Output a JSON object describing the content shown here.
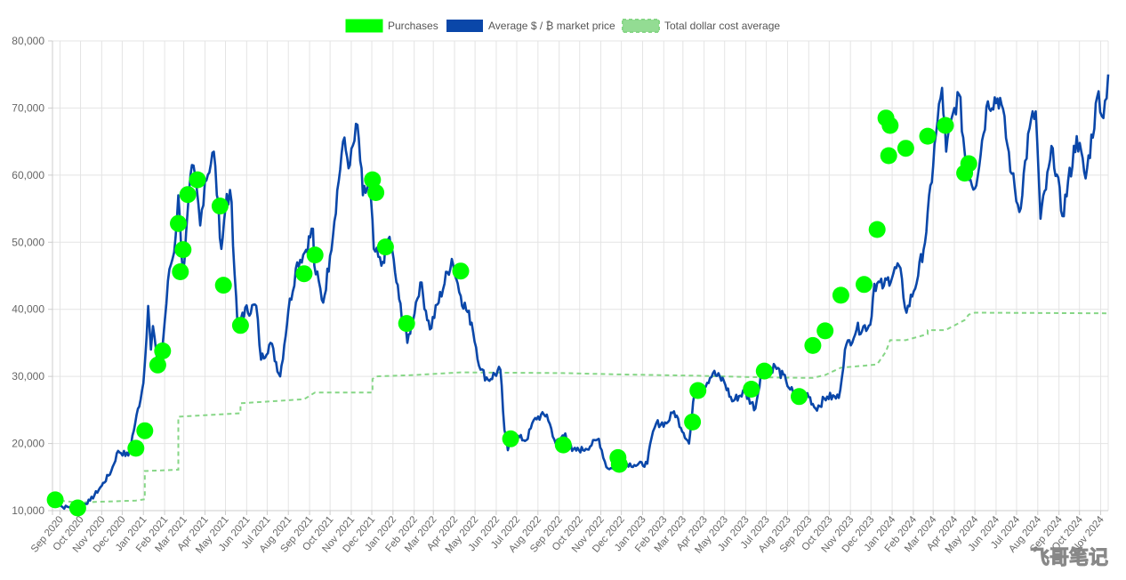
{
  "watermark": "飞哥笔记",
  "chart_data": {
    "type": "line",
    "ylim": [
      10000,
      80000
    ],
    "yticks": [
      10000,
      20000,
      30000,
      40000,
      50000,
      60000,
      70000,
      80000
    ],
    "ytick_labels": [
      "10,000",
      "20,000",
      "30,000",
      "40,000",
      "50,000",
      "60,000",
      "70,000",
      "80,000"
    ],
    "xlim": [
      "2020-08-21",
      "2024-11-12"
    ],
    "xticks": [
      {
        "label": "Sep 2020",
        "date": "2020-09-01"
      },
      {
        "label": "Oct 2020",
        "date": "2020-10-01"
      },
      {
        "label": "Nov 2020",
        "date": "2020-11-01"
      },
      {
        "label": "Dec 2020",
        "date": "2020-12-01"
      },
      {
        "label": "Jan 2021",
        "date": "2021-01-01"
      },
      {
        "label": "Feb 2021",
        "date": "2021-02-01"
      },
      {
        "label": "Mar 2021",
        "date": "2021-03-01"
      },
      {
        "label": "Apr 2021",
        "date": "2021-04-01"
      },
      {
        "label": "May 2021",
        "date": "2021-05-01"
      },
      {
        "label": "Jun 2021",
        "date": "2021-06-01"
      },
      {
        "label": "Jul 2021",
        "date": "2021-07-01"
      },
      {
        "label": "Aug 2021",
        "date": "2021-08-01"
      },
      {
        "label": "Sep 2021",
        "date": "2021-09-01"
      },
      {
        "label": "Oct 2021",
        "date": "2021-10-01"
      },
      {
        "label": "Nov 2021",
        "date": "2021-11-01"
      },
      {
        "label": "Dec 2021",
        "date": "2021-12-01"
      },
      {
        "label": "Jan 2022",
        "date": "2022-01-01"
      },
      {
        "label": "Feb 2022",
        "date": "2022-02-01"
      },
      {
        "label": "Mar 2022",
        "date": "2022-03-01"
      },
      {
        "label": "Apr 2022",
        "date": "2022-04-01"
      },
      {
        "label": "May 2022",
        "date": "2022-05-01"
      },
      {
        "label": "Jun 2022",
        "date": "2022-06-01"
      },
      {
        "label": "Jul 2022",
        "date": "2022-07-01"
      },
      {
        "label": "Aug 2022",
        "date": "2022-08-01"
      },
      {
        "label": "Sep 2022",
        "date": "2022-09-01"
      },
      {
        "label": "Oct 2022",
        "date": "2022-10-01"
      },
      {
        "label": "Nov 2022",
        "date": "2022-11-01"
      },
      {
        "label": "Dec 2022",
        "date": "2022-12-01"
      },
      {
        "label": "Jan 2023",
        "date": "2023-01-01"
      },
      {
        "label": "Feb 2023",
        "date": "2023-02-01"
      },
      {
        "label": "Mar 2023",
        "date": "2023-03-01"
      },
      {
        "label": "Apr 2023",
        "date": "2023-04-01"
      },
      {
        "label": "May 2023",
        "date": "2023-05-01"
      },
      {
        "label": "Jun 2023",
        "date": "2023-06-01"
      },
      {
        "label": "Jul 2023",
        "date": "2023-07-01"
      },
      {
        "label": "Aug 2023",
        "date": "2023-08-01"
      },
      {
        "label": "Sep 2023",
        "date": "2023-09-01"
      },
      {
        "label": "Oct 2023",
        "date": "2023-10-01"
      },
      {
        "label": "Nov 2023",
        "date": "2023-11-01"
      },
      {
        "label": "Dec 2023",
        "date": "2023-12-01"
      },
      {
        "label": "Jan 2024",
        "date": "2024-01-01"
      },
      {
        "label": "Feb 2024",
        "date": "2024-02-01"
      },
      {
        "label": "Mar 2024",
        "date": "2024-03-01"
      },
      {
        "label": "Apr 2024",
        "date": "2024-04-01"
      },
      {
        "label": "May 2024",
        "date": "2024-05-01"
      },
      {
        "label": "Jun 2024",
        "date": "2024-06-01"
      },
      {
        "label": "Jul 2024",
        "date": "2024-07-01"
      },
      {
        "label": "Aug 2024",
        "date": "2024-08-01"
      },
      {
        "label": "Sep 2024",
        "date": "2024-09-01"
      },
      {
        "label": "Oct 2024",
        "date": "2024-10-01"
      },
      {
        "label": "Nov 2024",
        "date": "2024-11-01"
      }
    ],
    "grid": true,
    "legend_position": "top-center",
    "series": [
      {
        "name": "Purchases",
        "kind": "points",
        "color": "#00ff00",
        "points": [
          [
            "2020-08-25",
            11600
          ],
          [
            "2020-09-27",
            10400
          ],
          [
            "2020-12-21",
            19300
          ],
          [
            "2021-01-03",
            21900
          ],
          [
            "2021-01-22",
            31700
          ],
          [
            "2021-01-29",
            33800
          ],
          [
            "2021-02-21",
            52800
          ],
          [
            "2021-02-24",
            45600
          ],
          [
            "2021-02-28",
            48900
          ],
          [
            "2021-03-07",
            57100
          ],
          [
            "2021-03-21",
            59300
          ],
          [
            "2021-04-23",
            55400
          ],
          [
            "2021-04-28",
            43600
          ],
          [
            "2021-05-23",
            37600
          ],
          [
            "2021-08-24",
            45300
          ],
          [
            "2021-09-09",
            48100
          ],
          [
            "2021-12-02",
            59300
          ],
          [
            "2021-12-07",
            57400
          ],
          [
            "2021-12-21",
            49300
          ],
          [
            "2022-01-21",
            37900
          ],
          [
            "2022-04-10",
            45700
          ],
          [
            "2022-06-22",
            20700
          ],
          [
            "2022-09-07",
            19800
          ],
          [
            "2022-11-26",
            17900
          ],
          [
            "2022-11-28",
            16900
          ],
          [
            "2023-03-15",
            23200
          ],
          [
            "2023-03-23",
            27900
          ],
          [
            "2023-06-09",
            28100
          ],
          [
            "2023-06-28",
            30800
          ],
          [
            "2023-08-18",
            27000
          ],
          [
            "2023-09-07",
            34600
          ],
          [
            "2023-09-25",
            36800
          ],
          [
            "2023-10-18",
            42100
          ],
          [
            "2023-11-21",
            43700
          ],
          [
            "2023-12-10",
            51900
          ],
          [
            "2023-12-23",
            68500
          ],
          [
            "2023-12-27",
            62900
          ],
          [
            "2023-12-29",
            67400
          ],
          [
            "2024-01-21",
            64000
          ],
          [
            "2024-02-22",
            65800
          ],
          [
            "2024-03-19",
            67400
          ],
          [
            "2024-04-16",
            60300
          ],
          [
            "2024-04-22",
            61700
          ]
        ]
      },
      {
        "name": "Average $ / ₿ market price",
        "kind": "line",
        "color": "#0a47a9",
        "points": [
          [
            "2020-08-21",
            11700
          ],
          [
            "2020-09-05",
            10500
          ],
          [
            "2020-10-01",
            10700
          ],
          [
            "2020-10-15",
            11500
          ],
          [
            "2020-11-01",
            13700
          ],
          [
            "2020-11-15",
            15900
          ],
          [
            "2020-11-25",
            18900
          ],
          [
            "2020-12-10",
            18200
          ],
          [
            "2020-12-20",
            23000
          ],
          [
            "2021-01-01",
            29000
          ],
          [
            "2021-01-08",
            40500
          ],
          [
            "2021-01-12",
            34000
          ],
          [
            "2021-01-15",
            37500
          ],
          [
            "2021-01-22",
            31500
          ],
          [
            "2021-01-28",
            33500
          ],
          [
            "2021-02-08",
            46000
          ],
          [
            "2021-02-15",
            48500
          ],
          [
            "2021-02-21",
            57000
          ],
          [
            "2021-02-28",
            45200
          ],
          [
            "2021-03-13",
            61500
          ],
          [
            "2021-03-20",
            58000
          ],
          [
            "2021-03-25",
            52500
          ],
          [
            "2021-04-01",
            59000
          ],
          [
            "2021-04-14",
            63500
          ],
          [
            "2021-04-25",
            49000
          ],
          [
            "2021-05-03",
            57200
          ],
          [
            "2021-05-10",
            56000
          ],
          [
            "2021-05-12",
            49500
          ],
          [
            "2021-05-19",
            37000
          ],
          [
            "2021-05-26",
            39500
          ],
          [
            "2021-06-15",
            40500
          ],
          [
            "2021-06-22",
            32500
          ],
          [
            "2021-07-06",
            35000
          ],
          [
            "2021-07-20",
            30000
          ],
          [
            "2021-08-01",
            39800
          ],
          [
            "2021-08-14",
            47000
          ],
          [
            "2021-08-25",
            48500
          ],
          [
            "2021-09-06",
            52000
          ],
          [
            "2021-09-08",
            46500
          ],
          [
            "2021-09-21",
            41000
          ],
          [
            "2021-10-01",
            48000
          ],
          [
            "2021-10-20",
            65000
          ],
          [
            "2021-10-30",
            61500
          ],
          [
            "2021-11-10",
            67500
          ],
          [
            "2021-11-18",
            57000
          ],
          [
            "2021-11-28",
            58500
          ],
          [
            "2021-12-04",
            49000
          ],
          [
            "2021-12-15",
            46500
          ],
          [
            "2021-12-27",
            50800
          ],
          [
            "2022-01-10",
            41500
          ],
          [
            "2022-01-22",
            35000
          ],
          [
            "2022-02-10",
            44000
          ],
          [
            "2022-02-24",
            37000
          ],
          [
            "2022-03-28",
            47500
          ],
          [
            "2022-04-10",
            42000
          ],
          [
            "2022-04-26",
            38000
          ],
          [
            "2022-05-09",
            31000
          ],
          [
            "2022-05-20",
            29500
          ],
          [
            "2022-06-07",
            31000
          ],
          [
            "2022-06-13",
            22000
          ],
          [
            "2022-06-18",
            19000
          ],
          [
            "2022-06-25",
            21200
          ],
          [
            "2022-07-15",
            20500
          ],
          [
            "2022-07-28",
            23800
          ],
          [
            "2022-08-14",
            24300
          ],
          [
            "2022-08-27",
            20000
          ],
          [
            "2022-09-10",
            21500
          ],
          [
            "2022-09-20",
            18900
          ],
          [
            "2022-10-10",
            19200
          ],
          [
            "2022-10-29",
            20700
          ],
          [
            "2022-11-09",
            16500
          ],
          [
            "2022-11-20",
            16200
          ],
          [
            "2022-12-05",
            17100
          ],
          [
            "2022-12-20",
            16800
          ],
          [
            "2023-01-08",
            17000
          ],
          [
            "2023-01-14",
            20800
          ],
          [
            "2023-01-21",
            23000
          ],
          [
            "2023-02-05",
            23000
          ],
          [
            "2023-02-16",
            24800
          ],
          [
            "2023-03-10",
            20000
          ],
          [
            "2023-03-18",
            27500
          ],
          [
            "2023-03-30",
            28400
          ],
          [
            "2023-04-14",
            30500
          ],
          [
            "2023-04-30",
            29300
          ],
          [
            "2023-05-12",
            26300
          ],
          [
            "2023-05-30",
            27700
          ],
          [
            "2023-06-15",
            25200
          ],
          [
            "2023-06-23",
            30500
          ],
          [
            "2023-07-14",
            31500
          ],
          [
            "2023-07-30",
            29300
          ],
          [
            "2023-08-17",
            26000
          ],
          [
            "2023-08-30",
            27500
          ],
          [
            "2023-09-11",
            25200
          ],
          [
            "2023-09-28",
            27000
          ],
          [
            "2023-10-15",
            26800
          ],
          [
            "2023-10-24",
            34000
          ],
          [
            "2023-11-10",
            37000
          ],
          [
            "2023-11-30",
            37700
          ],
          [
            "2023-12-06",
            43800
          ],
          [
            "2023-12-20",
            43500
          ],
          [
            "2024-01-11",
            46500
          ],
          [
            "2024-01-22",
            39500
          ],
          [
            "2024-02-08",
            45000
          ],
          [
            "2024-02-20",
            51500
          ],
          [
            "2024-03-05",
            66000
          ],
          [
            "2024-03-14",
            73000
          ],
          [
            "2024-03-20",
            63500
          ],
          [
            "2024-04-01",
            70000
          ],
          [
            "2024-04-08",
            72000
          ],
          [
            "2024-04-18",
            61500
          ],
          [
            "2024-05-01",
            58000
          ],
          [
            "2024-05-20",
            71000
          ],
          [
            "2024-06-07",
            71500
          ],
          [
            "2024-06-24",
            60200
          ],
          [
            "2024-07-05",
            54500
          ],
          [
            "2024-07-20",
            67000
          ],
          [
            "2024-07-29",
            69500
          ],
          [
            "2024-08-05",
            53500
          ],
          [
            "2024-08-23",
            64000
          ],
          [
            "2024-09-06",
            53900
          ],
          [
            "2024-09-27",
            65800
          ],
          [
            "2024-10-10",
            59500
          ],
          [
            "2024-10-29",
            72500
          ],
          [
            "2024-11-05",
            68500
          ],
          [
            "2024-11-12",
            75000
          ]
        ]
      },
      {
        "name": "Total dollar cost average",
        "kind": "line-dashed",
        "color": "#86d686",
        "points": [
          [
            "2020-08-21",
            11600
          ],
          [
            "2020-09-27",
            11200
          ],
          [
            "2020-12-21",
            11500
          ],
          [
            "2021-01-03",
            11700
          ],
          [
            "2021-01-03",
            15900
          ],
          [
            "2021-02-21",
            16100
          ],
          [
            "2021-02-21",
            24000
          ],
          [
            "2021-05-23",
            24500
          ],
          [
            "2021-05-23",
            26000
          ],
          [
            "2021-08-24",
            26600
          ],
          [
            "2021-09-09",
            27600
          ],
          [
            "2021-12-02",
            27600
          ],
          [
            "2021-12-02",
            29600
          ],
          [
            "2021-12-07",
            30000
          ],
          [
            "2022-02-01",
            30200
          ],
          [
            "2022-04-10",
            30600
          ],
          [
            "2022-09-07",
            30500
          ],
          [
            "2022-11-28",
            30300
          ],
          [
            "2023-03-23",
            30100
          ],
          [
            "2023-06-09",
            29900
          ],
          [
            "2023-08-18",
            29800
          ],
          [
            "2023-09-07",
            29800
          ],
          [
            "2023-09-25",
            30200
          ],
          [
            "2023-10-18",
            31300
          ],
          [
            "2023-11-21",
            31600
          ],
          [
            "2023-12-10",
            31800
          ],
          [
            "2023-12-23",
            33700
          ],
          [
            "2023-12-29",
            35400
          ],
          [
            "2024-01-21",
            35400
          ],
          [
            "2024-02-22",
            36300
          ],
          [
            "2024-02-22",
            36900
          ],
          [
            "2024-03-19",
            36900
          ],
          [
            "2024-04-16",
            38400
          ],
          [
            "2024-04-22",
            39200
          ],
          [
            "2024-05-01",
            39500
          ],
          [
            "2024-11-12",
            39400
          ]
        ]
      }
    ]
  }
}
